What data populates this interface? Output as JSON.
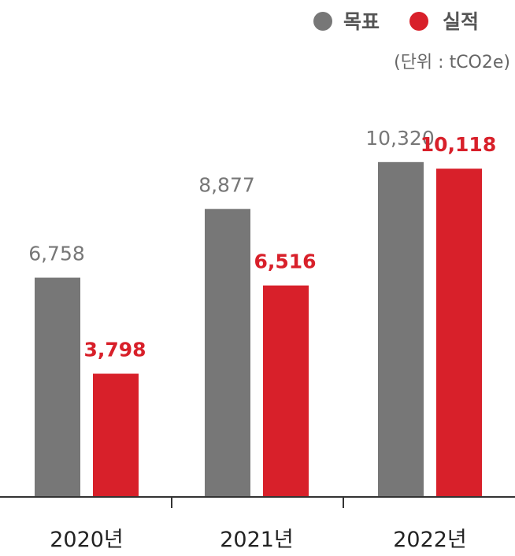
{
  "chart_data": {
    "type": "bar",
    "unit_label": "(단위 : tCO2e)",
    "categories": [
      "2020년",
      "2021년",
      "2022년"
    ],
    "series": [
      {
        "name": "목표",
        "color": "#777777",
        "values": [
          6758,
          8877,
          10320
        ],
        "labels": [
          "6,758",
          "8,877",
          "10,320"
        ]
      },
      {
        "name": "실적",
        "color": "#d8202a",
        "values": [
          3798,
          6516,
          10118
        ],
        "labels": [
          "3,798",
          "6,516",
          "10,118"
        ]
      }
    ],
    "ylim": [
      0,
      14000
    ],
    "grid": false,
    "legend_position": "top-right"
  }
}
